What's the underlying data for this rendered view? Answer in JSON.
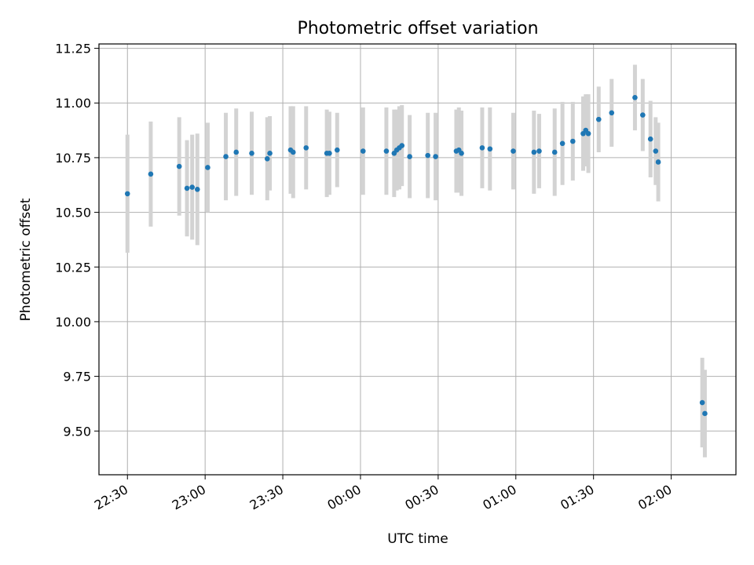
{
  "chart_data": {
    "type": "scatter",
    "title": "Photometric offset variation",
    "xlabel": "UTC time",
    "ylabel": "Photometric offset",
    "xlim": [
      "22:19",
      "02:25"
    ],
    "ylim": [
      9.3,
      11.27
    ],
    "x_ticks": [
      "22:30",
      "23:00",
      "23:30",
      "00:00",
      "00:30",
      "01:00",
      "01:30",
      "02:00"
    ],
    "y_ticks": [
      "9.50",
      "9.75",
      "10.00",
      "10.25",
      "10.50",
      "10.75",
      "11.00",
      "11.25"
    ],
    "grid": true,
    "colors": {
      "points": "#1f77b4",
      "errorbars": "#d3d3d3",
      "grid": "#b0b0b0"
    },
    "series": [
      {
        "x": [
          "22:30",
          "22:39",
          "22:50",
          "22:53",
          "22:55",
          "22:57",
          "23:01",
          "23:08",
          "23:12",
          "23:18",
          "23:24",
          "23:25",
          "23:33",
          "23:34",
          "23:39",
          "23:47",
          "23:48",
          "23:51",
          "24:01",
          "24:10",
          "24:13",
          "24:14",
          "24:15",
          "24:16",
          "24:19",
          "24:26",
          "24:29",
          "24:37",
          "24:38",
          "24:39",
          "24:47",
          "24:50",
          "24:59",
          "25:07",
          "25:09",
          "25:15",
          "25:18",
          "25:22",
          "25:26",
          "25:27",
          "25:28",
          "25:32",
          "25:37",
          "25:46",
          "25:49",
          "25:52",
          "25:54",
          "25:55",
          "26:12",
          "26:13"
        ],
        "y": [
          10.585,
          10.675,
          10.71,
          10.61,
          10.615,
          10.605,
          10.705,
          10.755,
          10.775,
          10.77,
          10.745,
          10.77,
          10.785,
          10.775,
          10.795,
          10.77,
          10.77,
          10.785,
          10.78,
          10.78,
          10.77,
          10.785,
          10.795,
          10.805,
          10.755,
          10.76,
          10.755,
          10.78,
          10.785,
          10.77,
          10.795,
          10.79,
          10.78,
          10.775,
          10.78,
          10.775,
          10.815,
          10.825,
          10.86,
          10.875,
          10.86,
          10.925,
          10.955,
          11.025,
          10.945,
          10.835,
          10.78,
          10.73,
          9.63,
          9.58
        ],
        "err": [
          0.27,
          0.24,
          0.225,
          0.22,
          0.24,
          0.255,
          0.205,
          0.2,
          0.2,
          0.19,
          0.19,
          0.17,
          0.2,
          0.21,
          0.19,
          0.2,
          0.19,
          0.17,
          0.2,
          0.2,
          0.2,
          0.185,
          0.19,
          0.185,
          0.19,
          0.195,
          0.2,
          0.19,
          0.195,
          0.195,
          0.185,
          0.19,
          0.175,
          0.19,
          0.17,
          0.2,
          0.19,
          0.18,
          0.17,
          0.165,
          0.18,
          0.15,
          0.155,
          0.15,
          0.165,
          0.175,
          0.155,
          0.18,
          0.205,
          0.2
        ]
      }
    ]
  }
}
